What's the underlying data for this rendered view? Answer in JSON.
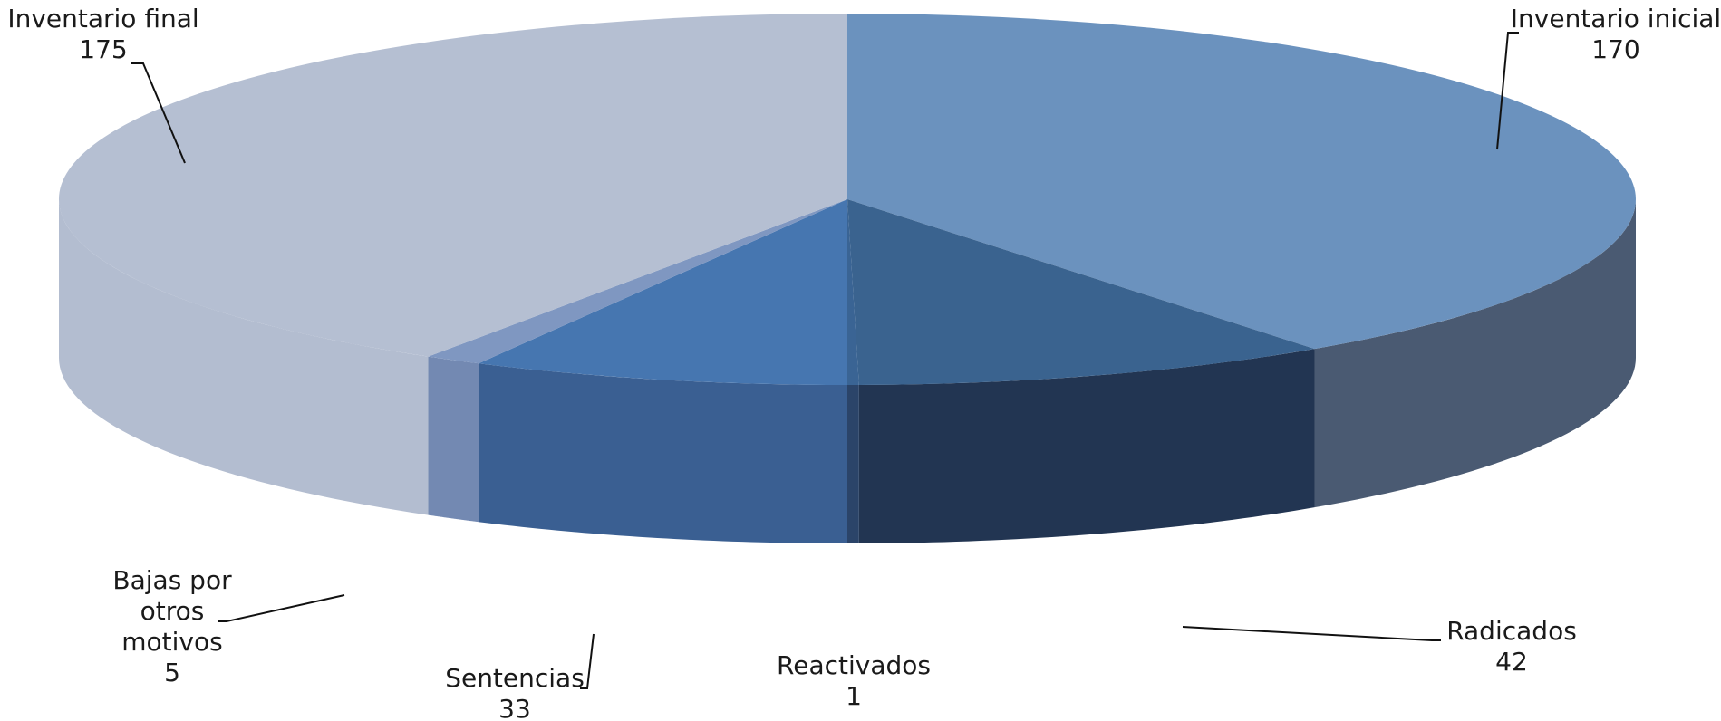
{
  "chart_data": {
    "type": "pie",
    "style": "3d-exploded-none",
    "title": "",
    "slices": [
      {
        "label": "Inventario inicial",
        "value": 170,
        "color": "#6b92be",
        "side": "#4a5a72"
      },
      {
        "label": "Radicados",
        "value": 42,
        "color": "#3a638f",
        "side": "#223552"
      },
      {
        "label": "Reactivados",
        "value": 1,
        "color": "#3a6494",
        "side": "#2b4469"
      },
      {
        "label": "Sentencias",
        "value": 33,
        "color": "#4676b0",
        "side": "#3a5f92"
      },
      {
        "label": "Bajas por otros motivos",
        "value": 5,
        "color": "#7f97c1",
        "side": "#7389b2"
      },
      {
        "label": "Inventario final",
        "value": 175,
        "color": "#b5bfd2",
        "side": "#b3bdd0"
      }
    ]
  }
}
